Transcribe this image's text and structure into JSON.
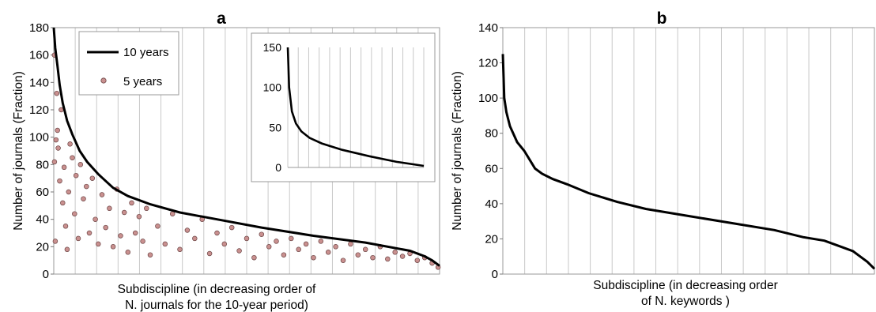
{
  "chart_data": [
    {
      "panel": "a",
      "type": "line",
      "title": "",
      "xlabel": [
        "Subdiscipline  (in decreasing order of",
        "N. journals for the 10-year period)"
      ],
      "ylabel": "Number of journals (Fraction)",
      "ylim": [
        0,
        180
      ],
      "yticks": [
        0,
        20,
        40,
        60,
        80,
        100,
        120,
        140,
        160,
        180
      ],
      "x_count": 520,
      "grid": "vertical",
      "legend": {
        "position": "top-left",
        "entries": [
          {
            "label": "10 years",
            "marker": "line"
          },
          {
            "label": "5 years",
            "marker": "circle"
          }
        ]
      },
      "series": [
        {
          "name": "10 years",
          "style": "line",
          "color": "#000000",
          "x": [
            0,
            2,
            5,
            8,
            12,
            18,
            25,
            35,
            45,
            60,
            80,
            100,
            130,
            170,
            220,
            280,
            350,
            420,
            480,
            500,
            510,
            520
          ],
          "values": [
            180,
            165,
            152,
            138,
            125,
            112,
            102,
            90,
            82,
            73,
            63,
            57,
            51,
            45,
            40,
            34,
            28,
            23,
            17,
            13,
            10,
            6
          ]
        },
        {
          "name": "5 years",
          "style": "scatter",
          "color": "#c9908f",
          "points": [
            [
              1,
              160
            ],
            [
              1,
              82
            ],
            [
              2,
              24
            ],
            [
              3,
              98
            ],
            [
              4,
              132
            ],
            [
              5,
              105
            ],
            [
              6,
              92
            ],
            [
              8,
              68
            ],
            [
              10,
              120
            ],
            [
              12,
              52
            ],
            [
              14,
              78
            ],
            [
              16,
              35
            ],
            [
              18,
              18
            ],
            [
              20,
              60
            ],
            [
              22,
              95
            ],
            [
              25,
              85
            ],
            [
              28,
              44
            ],
            [
              30,
              72
            ],
            [
              33,
              26
            ],
            [
              36,
              80
            ],
            [
              40,
              55
            ],
            [
              44,
              64
            ],
            [
              48,
              30
            ],
            [
              52,
              70
            ],
            [
              56,
              40
            ],
            [
              60,
              22
            ],
            [
              65,
              58
            ],
            [
              70,
              34
            ],
            [
              75,
              48
            ],
            [
              80,
              20
            ],
            [
              85,
              62
            ],
            [
              90,
              28
            ],
            [
              95,
              45
            ],
            [
              100,
              16
            ],
            [
              105,
              52
            ],
            [
              110,
              30
            ],
            [
              115,
              42
            ],
            [
              120,
              24
            ],
            [
              125,
              48
            ],
            [
              130,
              14
            ],
            [
              140,
              35
            ],
            [
              150,
              22
            ],
            [
              160,
              44
            ],
            [
              170,
              18
            ],
            [
              180,
              32
            ],
            [
              190,
              26
            ],
            [
              200,
              40
            ],
            [
              210,
              15
            ],
            [
              220,
              30
            ],
            [
              230,
              22
            ],
            [
              240,
              34
            ],
            [
              250,
              17
            ],
            [
              260,
              26
            ],
            [
              270,
              12
            ],
            [
              280,
              29
            ],
            [
              290,
              20
            ],
            [
              300,
              24
            ],
            [
              310,
              14
            ],
            [
              320,
              26
            ],
            [
              330,
              18
            ],
            [
              340,
              22
            ],
            [
              350,
              12
            ],
            [
              360,
              24
            ],
            [
              370,
              16
            ],
            [
              380,
              20
            ],
            [
              390,
              10
            ],
            [
              400,
              22
            ],
            [
              410,
              14
            ],
            [
              420,
              18
            ],
            [
              430,
              12
            ],
            [
              440,
              20
            ],
            [
              450,
              11
            ],
            [
              460,
              16
            ],
            [
              470,
              13
            ],
            [
              480,
              15
            ],
            [
              490,
              10
            ],
            [
              500,
              12
            ],
            [
              510,
              8
            ],
            [
              518,
              5
            ]
          ]
        }
      ],
      "inset": {
        "type": "line",
        "ylim": [
          0,
          150
        ],
        "yticks": [
          0,
          50,
          100,
          150
        ],
        "grid": "vertical",
        "x": [
          0,
          1,
          3,
          6,
          10,
          16,
          25,
          40,
          60,
          80,
          100
        ],
        "values": [
          150,
          100,
          70,
          55,
          45,
          37,
          30,
          22,
          14,
          7,
          2
        ]
      }
    },
    {
      "panel": "b",
      "type": "line",
      "title": "",
      "xlabel": [
        "Subdiscipline  (in decreasing order",
        "of N. keywords )"
      ],
      "ylabel": "Number of journals (Fraction)",
      "ylim": [
        0,
        140
      ],
      "yticks": [
        0,
        20,
        40,
        60,
        80,
        100,
        120,
        140
      ],
      "x_count": 520,
      "grid": "vertical",
      "series": [
        {
          "name": "",
          "style": "line",
          "color": "#000000",
          "x": [
            0,
            2,
            5,
            10,
            20,
            30,
            45,
            55,
            70,
            90,
            120,
            160,
            200,
            260,
            320,
            380,
            420,
            450,
            470,
            490,
            500,
            510,
            520
          ],
          "values": [
            125,
            100,
            92,
            84,
            75,
            70,
            60,
            57,
            54,
            51,
            46,
            41,
            37,
            33,
            29,
            25,
            21,
            19,
            16,
            13,
            10,
            7,
            3
          ]
        }
      ]
    }
  ]
}
